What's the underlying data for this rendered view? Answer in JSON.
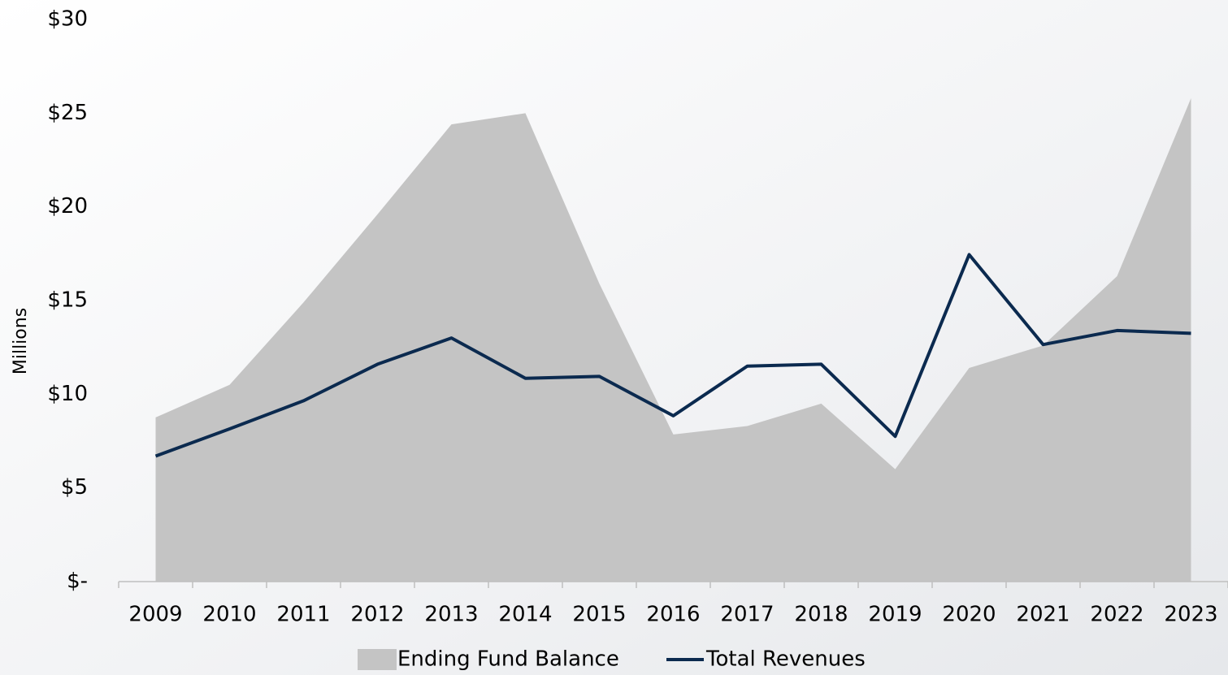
{
  "chart_data": {
    "type": "area",
    "y_label": "Millions",
    "categories": [
      "2009",
      "2010",
      "2011",
      "2012",
      "2013",
      "2014",
      "2015",
      "2016",
      "2017",
      "2018",
      "2019",
      "2020",
      "2021",
      "2022",
      "2023"
    ],
    "series": [
      {
        "name": "Ending Fund Balance",
        "type": "area",
        "color": "#c4c4c4",
        "values": [
          8.76,
          10.5,
          14.9,
          19.6,
          24.4,
          25.0,
          15.9,
          7.85,
          8.3,
          9.5,
          6.0,
          11.4,
          12.6,
          16.3,
          25.8
        ]
      },
      {
        "name": "Total Revenues",
        "type": "line",
        "color": "#0b2a4f",
        "values": [
          6.7,
          8.15,
          9.65,
          11.6,
          13.0,
          10.85,
          10.95,
          8.85,
          11.5,
          11.6,
          7.75,
          17.45,
          12.65,
          13.4,
          13.25
        ]
      }
    ],
    "ylim": [
      0,
      30
    ],
    "yticks": [
      {
        "value": 0,
        "label": "$-"
      },
      {
        "value": 5,
        "label": "$5"
      },
      {
        "value": 10,
        "label": "$10"
      },
      {
        "value": 15,
        "label": "$15"
      },
      {
        "value": 20,
        "label": "$20"
      },
      {
        "value": 25,
        "label": "$25"
      },
      {
        "value": 30,
        "label": "$30"
      }
    ],
    "legend": "bottom"
  }
}
